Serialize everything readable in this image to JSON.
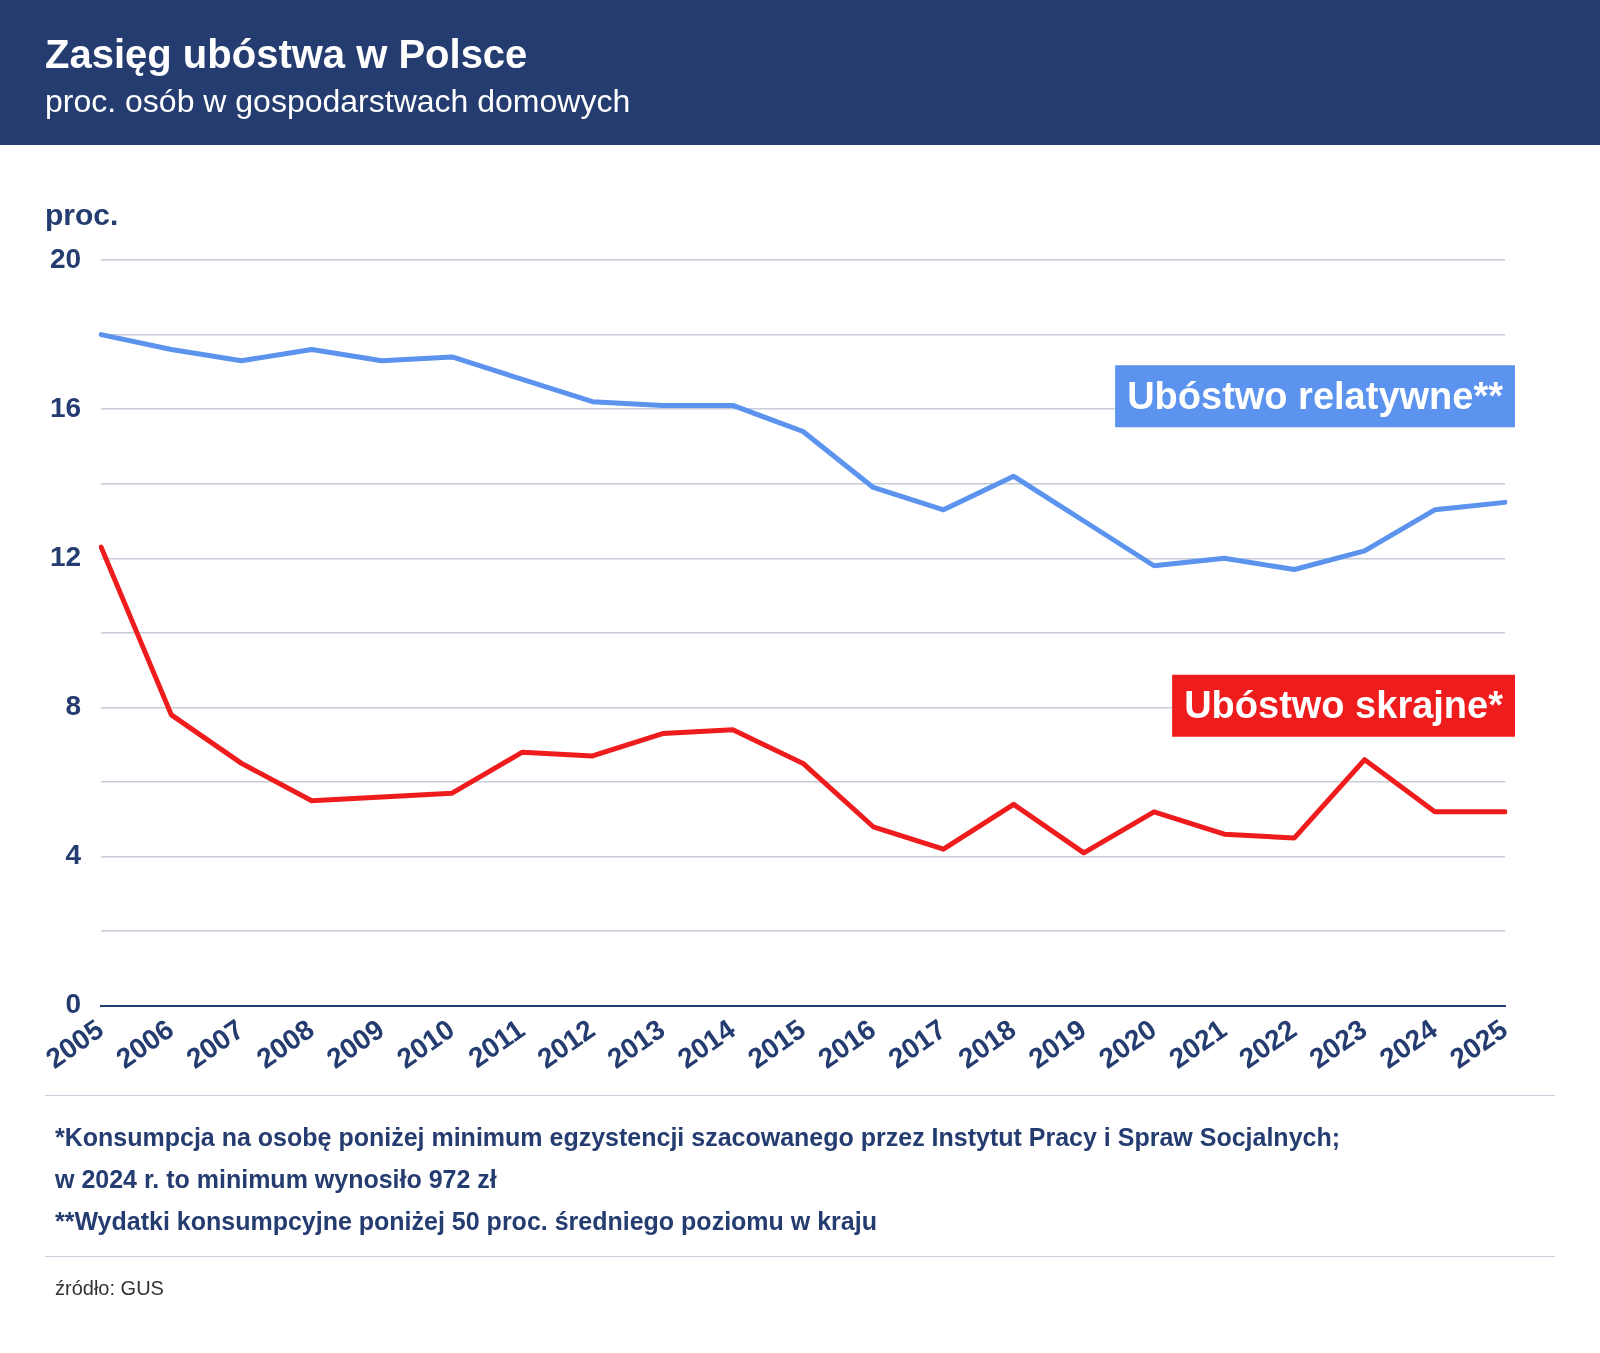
{
  "chart_data": {
    "type": "line",
    "title": "Zasięg ubóstwa w Polsce",
    "subtitle": "proc. osób w gospodarstwach domowych",
    "ylabel": "proc.",
    "categories": [
      "2005",
      "2006",
      "2007",
      "2008",
      "2009",
      "2010",
      "2011",
      "2012",
      "2013",
      "2014",
      "2015",
      "2016",
      "2017",
      "2018",
      "2019",
      "2020",
      "2021",
      "2022",
      "2023",
      "2024",
      "2025"
    ],
    "series": [
      {
        "name": "Ubóstwo relatywne**",
        "color": "#5b93ee",
        "values": [
          18.0,
          17.6,
          17.3,
          17.6,
          17.3,
          17.4,
          16.8,
          16.2,
          16.1,
          16.1,
          15.4,
          13.9,
          13.3,
          14.2,
          13.0,
          11.8,
          12.0,
          11.7,
          12.2,
          13.3,
          13.5
        ]
      },
      {
        "name": "Ubóstwo skrajne*",
        "color": "#ee1c1c",
        "values": [
          12.3,
          7.8,
          6.5,
          5.5,
          5.6,
          5.7,
          6.8,
          6.7,
          7.3,
          7.4,
          6.5,
          4.8,
          4.2,
          5.4,
          4.1,
          5.2,
          4.6,
          4.5,
          6.6,
          5.2,
          5.2
        ]
      }
    ],
    "ylim": [
      0,
      20
    ],
    "yticks": [
      0,
      {
        "value": 2,
        "label": null
      },
      4,
      {
        "value": 6,
        "label": null
      },
      8,
      {
        "value": 10,
        "label": null
      },
      12,
      {
        "value": 14,
        "label": null
      },
      16,
      {
        "value": 18,
        "label": null
      },
      20
    ],
    "grid": "y",
    "legend": false,
    "marker": "none",
    "line_style": "solid",
    "annotations": [
      "*Konsumpcja na osobę poniżej minimum egzystencji szacowanego przez Instytut Pracy i Spraw Socjalnych;\nw 2024 r. to minimum wynosiło 972 zł",
      "**Wydatki konsumpcyjne poniżej 50 proc. średniego poziomu w kraju",
      "źródło: GUS"
    ]
  }
}
